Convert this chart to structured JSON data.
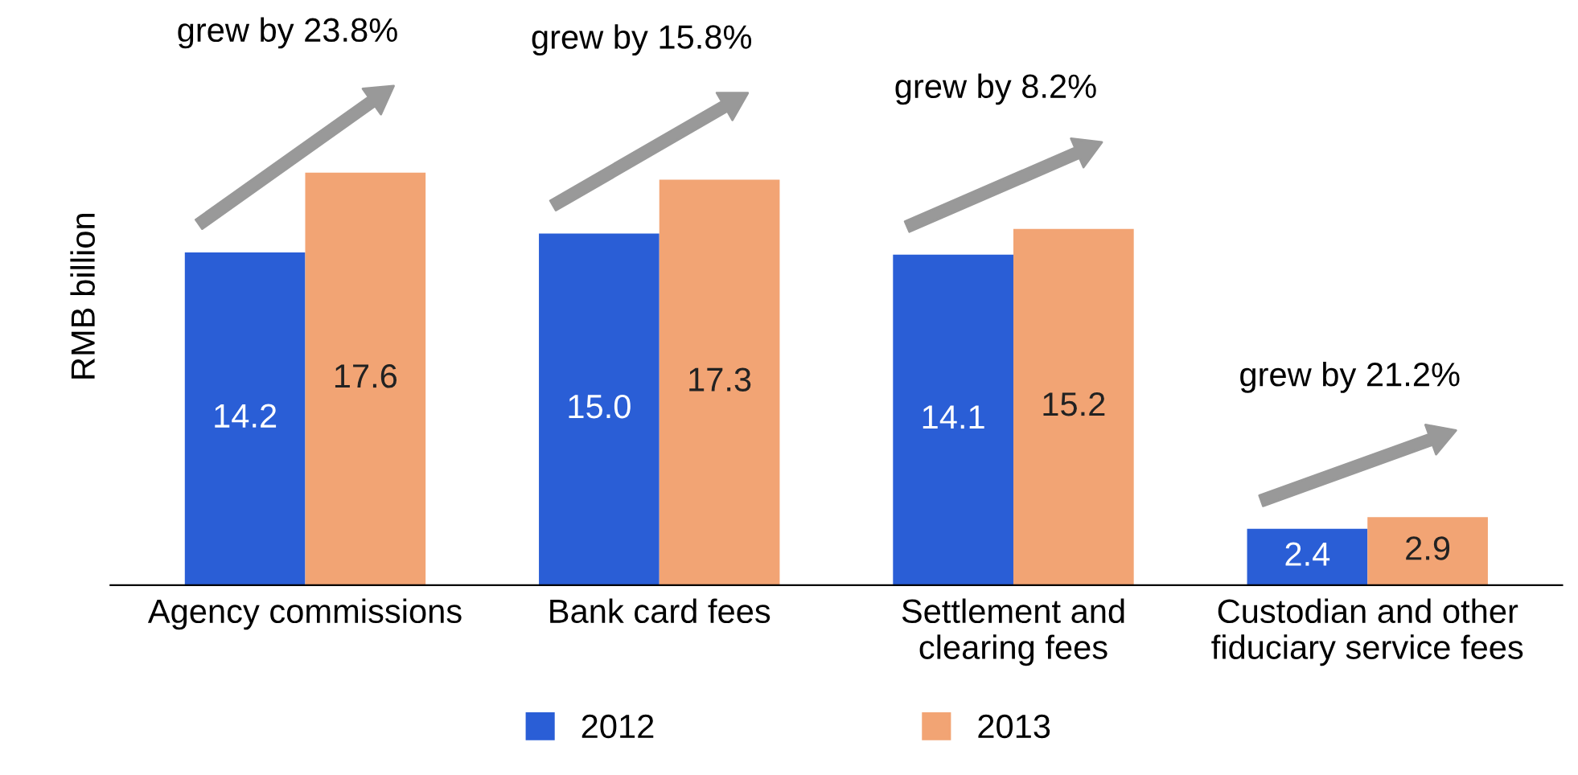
{
  "chart_data": {
    "type": "bar",
    "ylabel": "RMB billion",
    "categories": [
      "Agency commissions",
      "Bank card fees",
      "Settlement and\nclearing fees",
      "Custodian and other\nfiduciary service fees"
    ],
    "series": [
      {
        "name": "2012",
        "color": "#2a5ed6",
        "values": [
          14.2,
          15.0,
          14.1,
          2.4
        ],
        "value_labels": [
          "14.2",
          "15.0",
          "14.1",
          "2.4"
        ]
      },
      {
        "name": "2013",
        "color": "#f2a474",
        "values": [
          17.6,
          17.3,
          15.2,
          2.9
        ],
        "value_labels": [
          "17.6",
          "17.3",
          "15.2",
          "2.9"
        ]
      }
    ],
    "annotations": [
      "grew by 23.8%",
      "grew by 15.8%",
      "grew by 8.2%",
      "grew by 21.2%"
    ],
    "legend": "bottom",
    "grid": false
  }
}
